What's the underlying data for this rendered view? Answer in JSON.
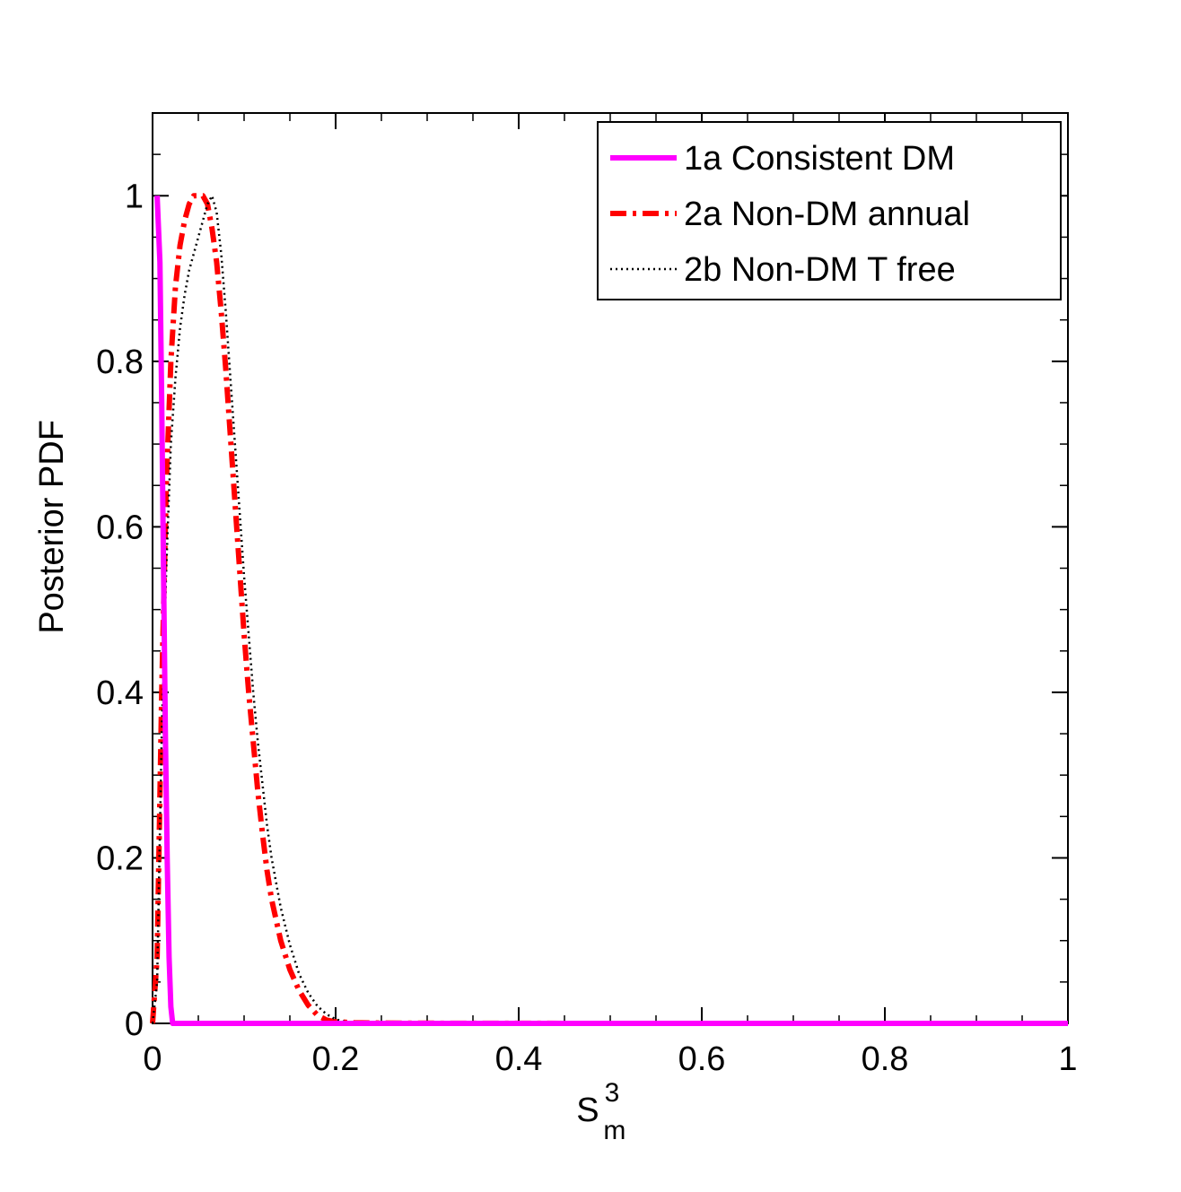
{
  "chart_data": {
    "type": "line",
    "title": "",
    "xlabel": "S",
    "xlabel_sup": "3",
    "xlabel_sub": "m",
    "ylabel": "Posterior PDF",
    "xlim": [
      0,
      1
    ],
    "ylim": [
      0,
      1.1
    ],
    "xticks": [
      0,
      0.2,
      0.4,
      0.6,
      0.8,
      1
    ],
    "xtick_labels": [
      "0",
      "0.2",
      "0.4",
      "0.6",
      "0.8",
      "1"
    ],
    "yticks": [
      0,
      0.2,
      0.4,
      0.6,
      0.8,
      1
    ],
    "ytick_labels": [
      "0",
      "0.2",
      "0.4",
      "0.6",
      "0.8",
      "1"
    ],
    "grid": false,
    "legend_position": "top-right",
    "series": [
      {
        "name": "1a Consistent DM",
        "color": "#ff00ff",
        "style": "solid",
        "x": [
          0.005,
          0.008,
          0.01,
          0.012,
          0.014,
          0.016,
          0.018,
          0.02,
          0.022,
          0.03,
          0.1,
          0.5,
          1.0
        ],
        "y": [
          1.0,
          0.92,
          0.75,
          0.55,
          0.35,
          0.2,
          0.08,
          0.02,
          0.0,
          0.0,
          0.0,
          0.0,
          0.0
        ]
      },
      {
        "name": "2a Non-DM annual",
        "color": "#ff0000",
        "style": "dashdot",
        "x": [
          0.0,
          0.005,
          0.01,
          0.015,
          0.02,
          0.025,
          0.03,
          0.035,
          0.04,
          0.045,
          0.05,
          0.055,
          0.06,
          0.065,
          0.07,
          0.075,
          0.08,
          0.085,
          0.09,
          0.095,
          0.1,
          0.105,
          0.11,
          0.115,
          0.12,
          0.125,
          0.13,
          0.14,
          0.15,
          0.16,
          0.17,
          0.18,
          0.19,
          0.2,
          0.22,
          0.25,
          0.3,
          0.4,
          0.5,
          0.6,
          0.8,
          1.0
        ],
        "y": [
          0.0,
          0.08,
          0.4,
          0.65,
          0.8,
          0.89,
          0.94,
          0.97,
          0.99,
          1.0,
          1.0,
          1.0,
          0.99,
          0.96,
          0.92,
          0.86,
          0.79,
          0.71,
          0.63,
          0.55,
          0.47,
          0.4,
          0.34,
          0.28,
          0.23,
          0.185,
          0.15,
          0.1,
          0.065,
          0.04,
          0.022,
          0.01,
          0.004,
          0.002,
          0.0008,
          0.0004,
          0.0002,
          0.0001,
          0.0,
          0.0,
          0.0,
          0.0
        ]
      },
      {
        "name": "2b Non-DM T free",
        "color": "#000000",
        "style": "dotted",
        "x": [
          0.0,
          0.005,
          0.01,
          0.015,
          0.02,
          0.025,
          0.03,
          0.035,
          0.04,
          0.045,
          0.05,
          0.055,
          0.06,
          0.065,
          0.07,
          0.075,
          0.08,
          0.085,
          0.09,
          0.095,
          0.1,
          0.105,
          0.11,
          0.115,
          0.12,
          0.125,
          0.13,
          0.14,
          0.15,
          0.16,
          0.17,
          0.18,
          0.19,
          0.2,
          0.21,
          0.22,
          0.25,
          0.3,
          0.4,
          0.5,
          0.6,
          0.8,
          1.0
        ],
        "y": [
          0.0,
          0.05,
          0.35,
          0.55,
          0.7,
          0.78,
          0.84,
          0.88,
          0.91,
          0.93,
          0.95,
          0.97,
          0.99,
          1.0,
          0.98,
          0.93,
          0.86,
          0.78,
          0.7,
          0.62,
          0.54,
          0.47,
          0.4,
          0.34,
          0.29,
          0.24,
          0.2,
          0.14,
          0.095,
          0.06,
          0.037,
          0.021,
          0.011,
          0.005,
          0.002,
          0.001,
          0.0005,
          0.0003,
          0.0002,
          0.0001,
          0.0,
          0.0,
          0.0
        ]
      }
    ]
  }
}
